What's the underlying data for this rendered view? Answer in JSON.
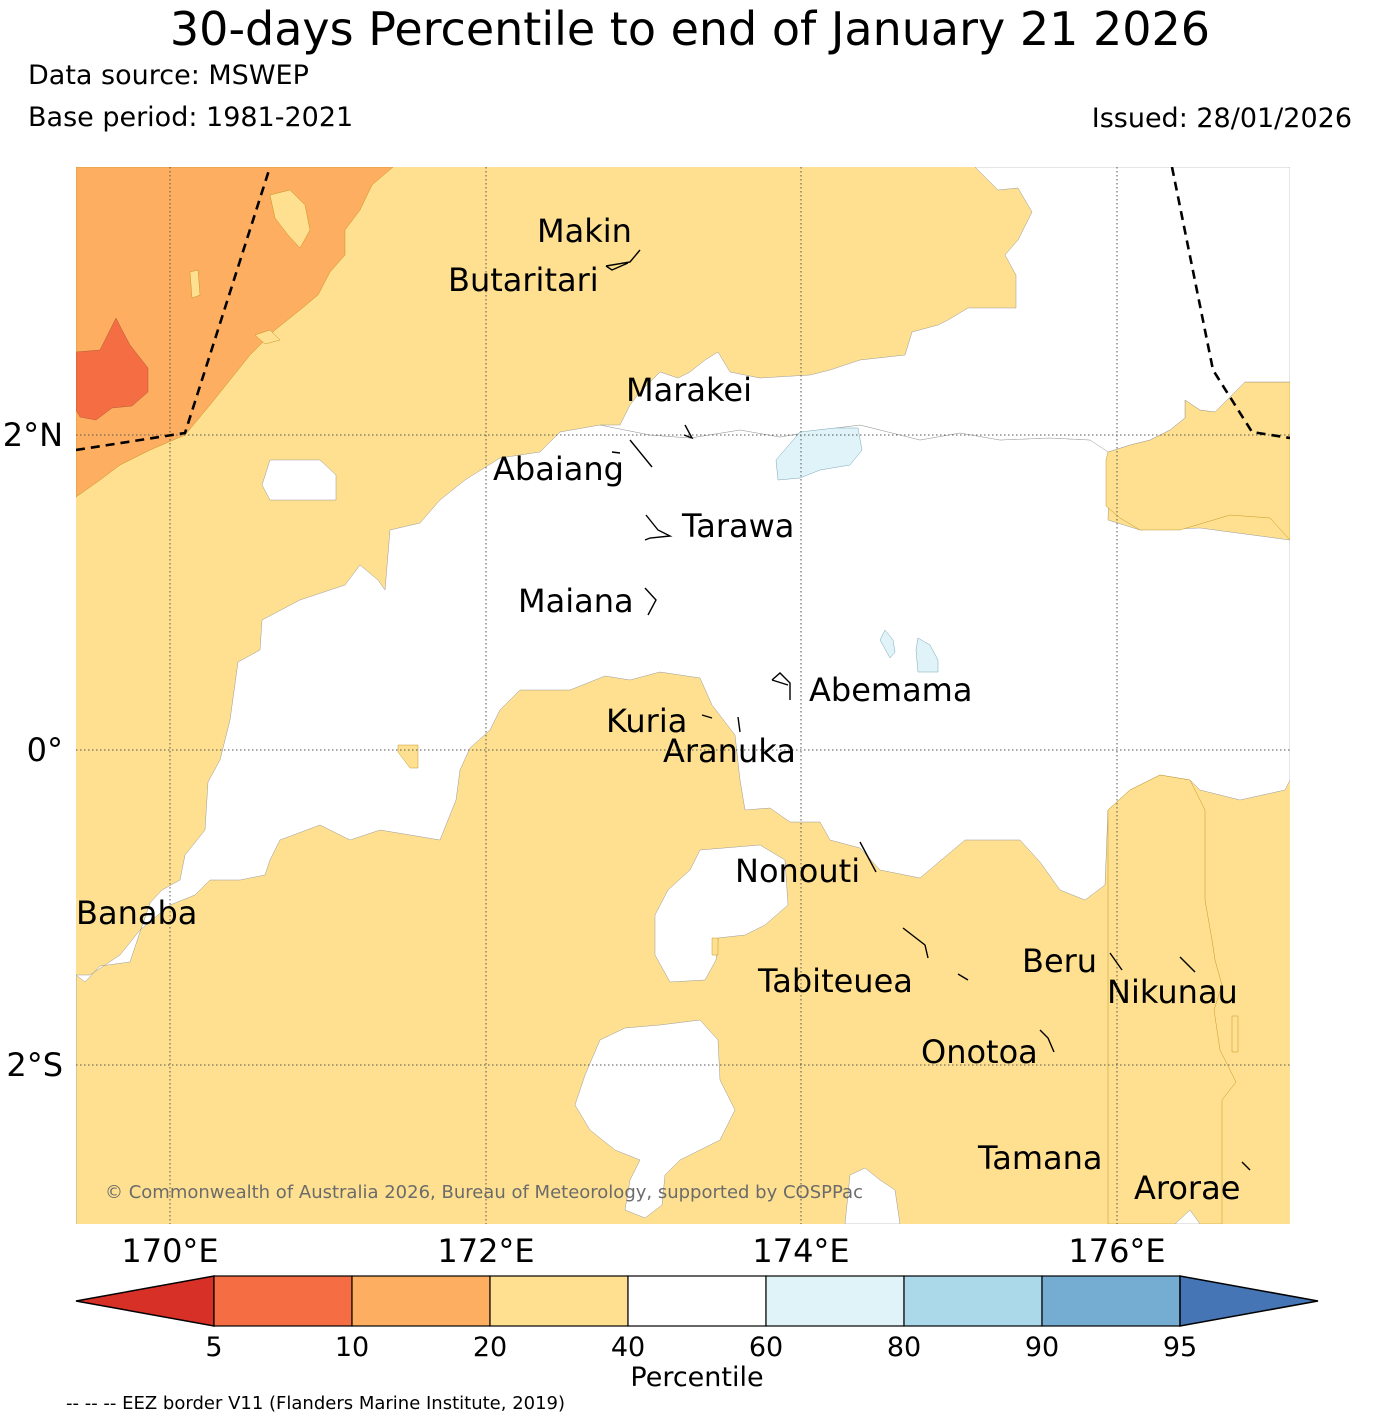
{
  "header": {
    "title": "30-days Percentile to end of January 21 2026",
    "data_source": "Data source: MSWEP",
    "base_period": "Base period: 1981-2021",
    "issued": "Issued: 28/01/2026"
  },
  "map": {
    "lat_labels": [
      "2°N",
      "0°",
      "2°S"
    ],
    "lon_labels": [
      "170°E",
      "172°E",
      "174°E",
      "176°E"
    ],
    "copyright": "© Commonwealth of Australia 2026, Bureau of Meteorology, supported by COSPPac",
    "islands": [
      {
        "name": "Makin",
        "lon": 173.0,
        "lat": 3.12
      },
      {
        "name": "Butaritari",
        "lon": 172.85,
        "lat": 3.08
      },
      {
        "name": "Marakei",
        "lon": 173.3,
        "lat": 2.0
      },
      {
        "name": "Abaiang",
        "lon": 172.95,
        "lat": 1.85
      },
      {
        "name": "Tarawa",
        "lon": 173.05,
        "lat": 1.42
      },
      {
        "name": "Maiana",
        "lon": 173.0,
        "lat": 0.95
      },
      {
        "name": "Abemama",
        "lon": 173.85,
        "lat": 0.42
      },
      {
        "name": "Kuria",
        "lon": 173.4,
        "lat": 0.22
      },
      {
        "name": "Aranuka",
        "lon": 173.6,
        "lat": 0.18
      },
      {
        "name": "Nonouti",
        "lon": 174.4,
        "lat": -0.65
      },
      {
        "name": "Tabiteuea",
        "lon": 174.8,
        "lat": -1.25
      },
      {
        "name": "Beru",
        "lon": 176.0,
        "lat": -1.35
      },
      {
        "name": "Nikunau",
        "lon": 176.45,
        "lat": -1.35
      },
      {
        "name": "Onotoa",
        "lon": 175.55,
        "lat": -1.85
      },
      {
        "name": "Tamana",
        "lon": 175.95,
        "lat": -2.5
      },
      {
        "name": "Arorae",
        "lon": 176.8,
        "lat": -2.65
      },
      {
        "name": "Banaba",
        "lon": 169.53,
        "lat": -0.86
      }
    ],
    "colors": {
      "pct_5_10": "#f46d43",
      "pct_10_20": "#fdae61",
      "pct_20_40": "#fee090",
      "pct_40_60": "#ffffff",
      "pct_60_80": "#e0f3f8"
    }
  },
  "colorbar": {
    "label": "Percentile",
    "ticks": [
      "5",
      "10",
      "20",
      "40",
      "60",
      "80",
      "90",
      "95"
    ],
    "colors": [
      "#d73027",
      "#f46d43",
      "#fdae61",
      "#fee090",
      "#ffffff",
      "#e0f3f8",
      "#abd9e9",
      "#74add1",
      "#4575b4"
    ]
  },
  "footer": {
    "eez_note": "-- -- -- EEZ border V11 (Flanders Marine Institute, 2019)"
  }
}
